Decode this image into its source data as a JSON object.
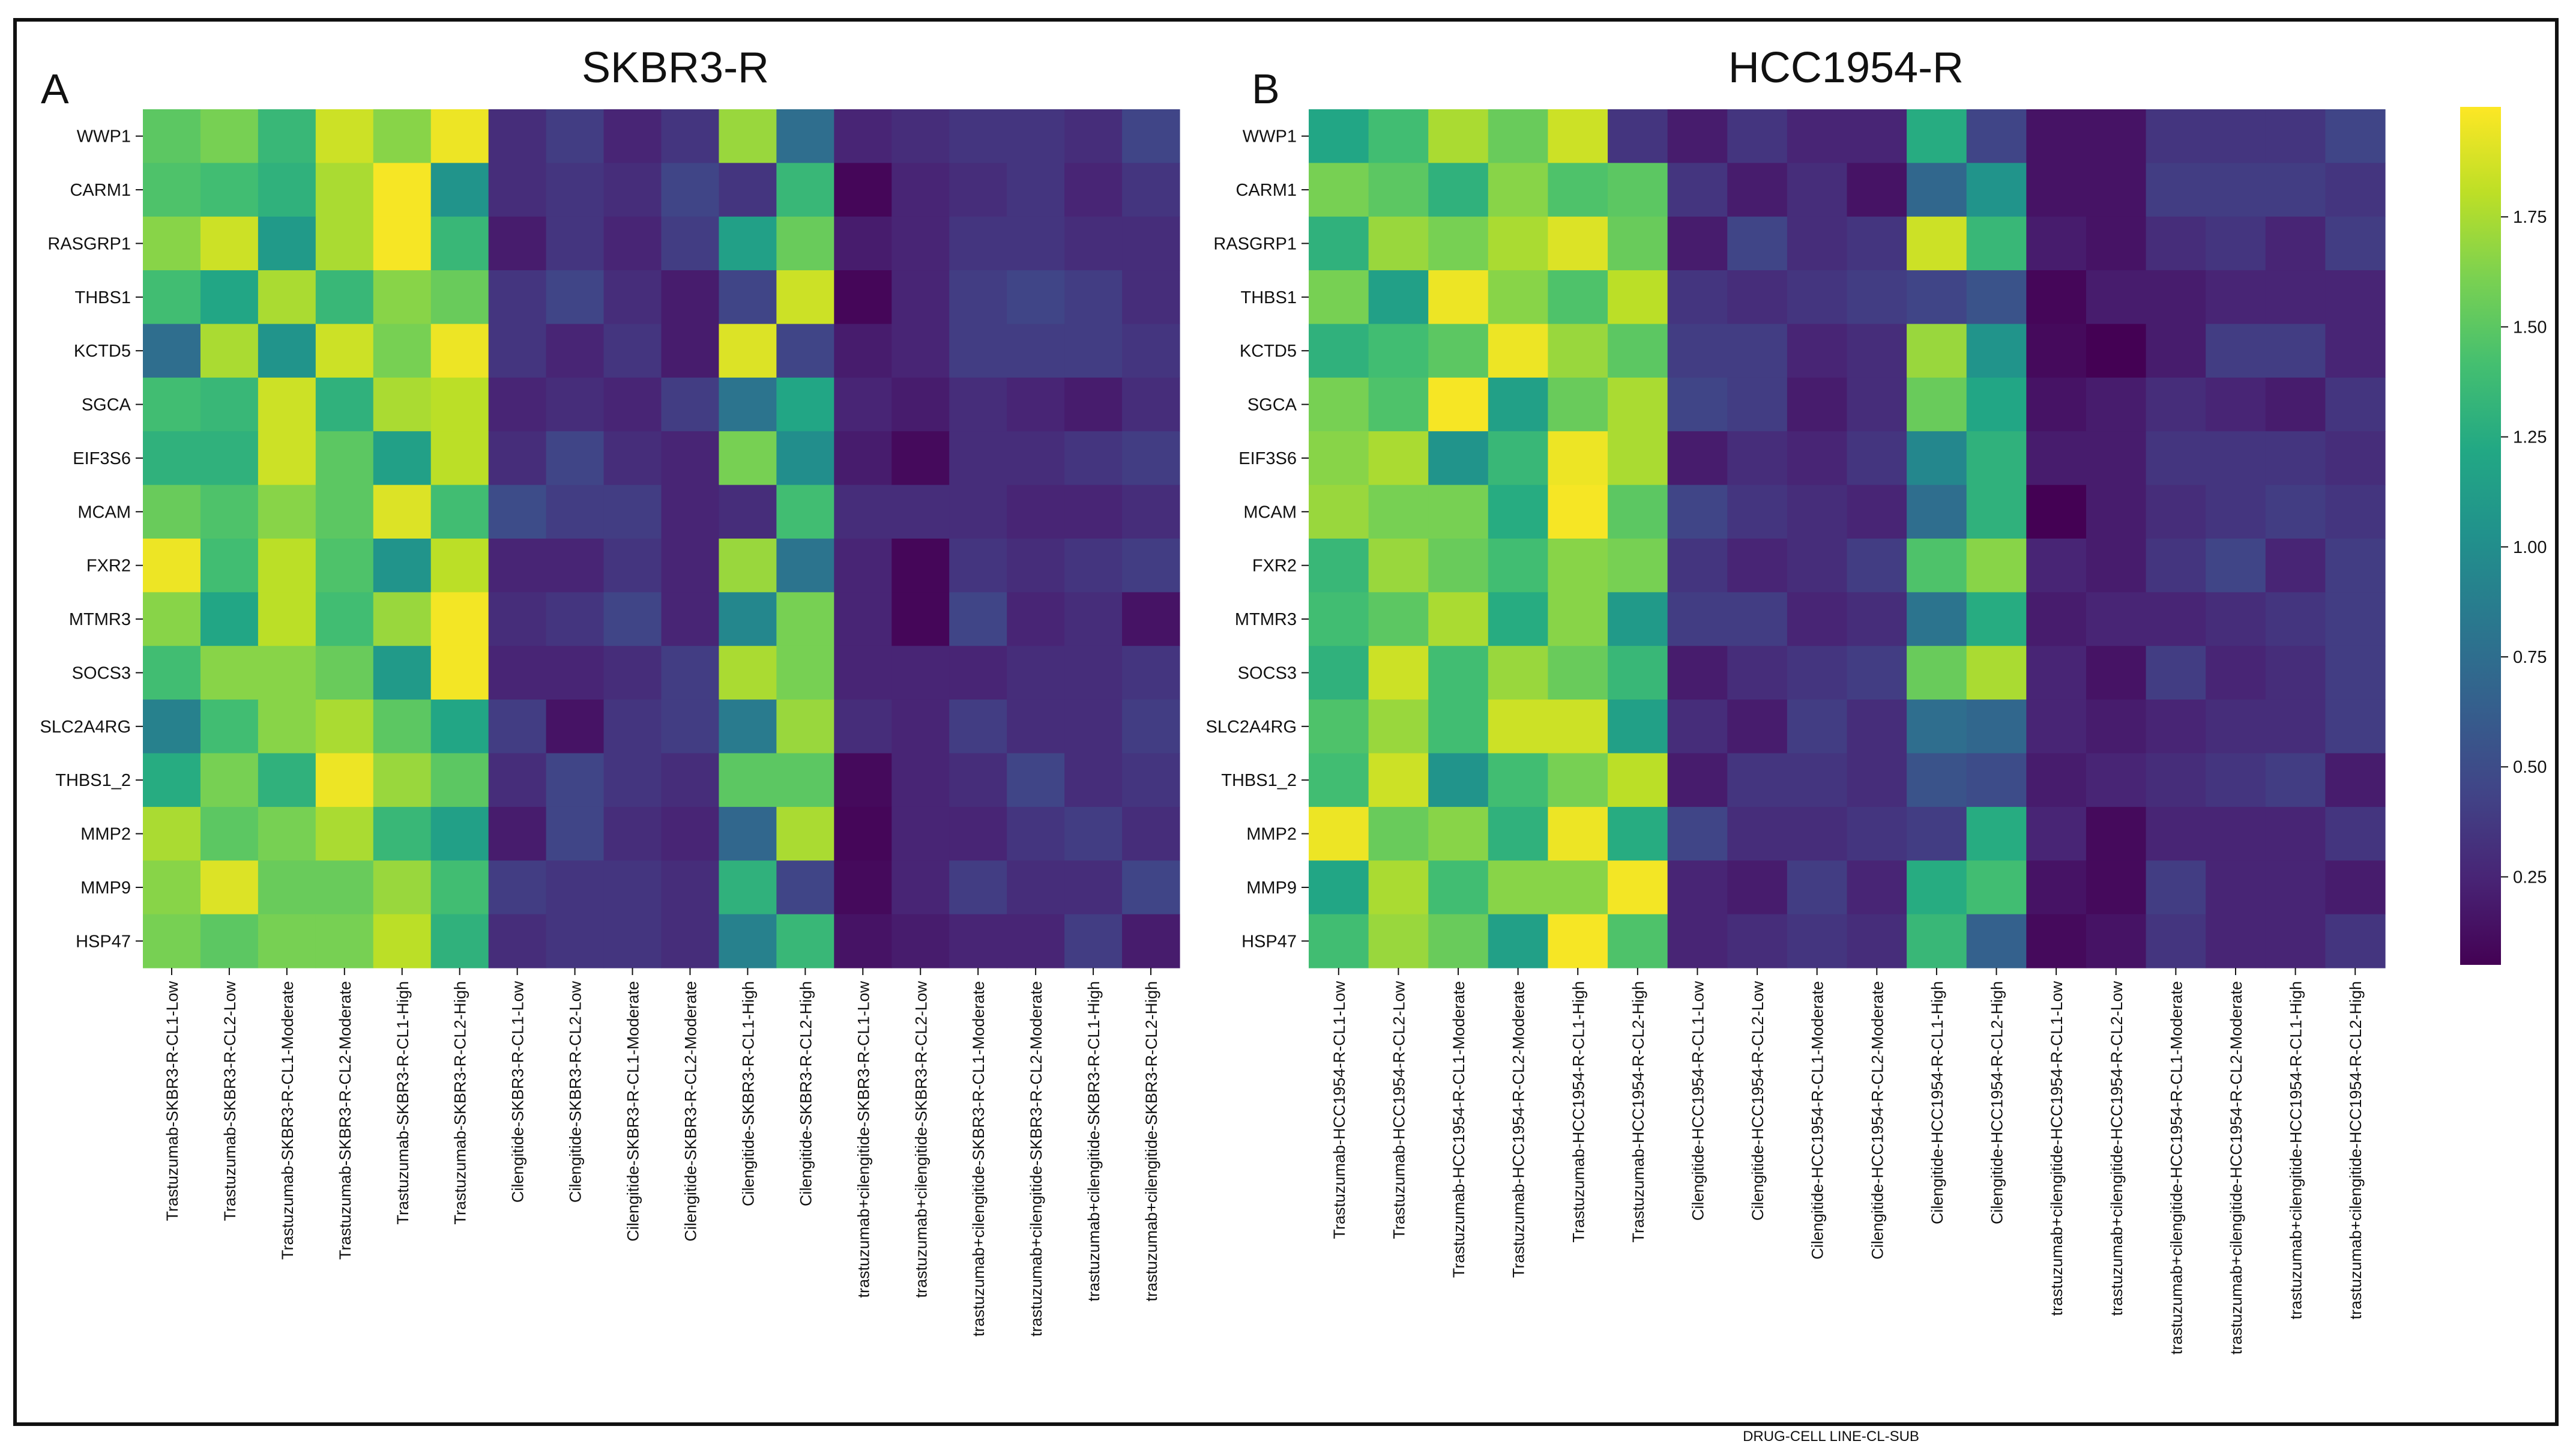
{
  "colorscale": "viridis",
  "chart_data": [
    {
      "type": "heatmap",
      "panel": "A",
      "title": "SKBR3-R",
      "rows": [
        "WWP1",
        "CARM1",
        "RASGRP1",
        "THBS1",
        "KCTD5",
        "SGCA",
        "EIF3S6",
        "MCAM",
        "FXR2",
        "MTMR3",
        "SOCS3",
        "SLC2A4RG",
        "THBS1_2",
        "MMP2",
        "MMP9",
        "HSP47"
      ],
      "columns": [
        "Trastuzumab-SKBR3-R-CL1-Low",
        "Trastuzumab-SKBR3-R-CL2-Low",
        "Trastuzumab-SKBR3-R-CL1-Moderate",
        "Trastuzumab-SKBR3-R-CL2-Moderate",
        "Trastuzumab-SKBR3-R-CL1-High",
        "Trastuzumab-SKBR3-R-CL2-High",
        "Cilengitide-SKBR3-R-CL1-Low",
        "Cilengitide-SKBR3-R-CL2-Low",
        "Cilengitide-SKBR3-R-CL1-Moderate",
        "Cilengitide-SKBR3-R-CL2-Moderate",
        "Cilengitide-SKBR3-R-CL1-High",
        "Cilengitide-SKBR3-R-CL2-High",
        "trastuzumab+cilengitide-SKBR3-R-CL1-Low",
        "trastuzumab+cilengitide-SKBR3-R-CL2-Low",
        "trastuzumab+cilengitide-SKBR3-R-CL1-Moderate",
        "trastuzumab+cilengitide-SKBR3-R-CL2-Moderate",
        "trastuzumab+cilengitide-SKBR3-R-CL1-High",
        "trastuzumab+cilengitide-SKBR3-R-CL2-High"
      ],
      "values": [
        [
          1.5,
          1.6,
          1.35,
          1.85,
          1.65,
          1.95,
          0.3,
          0.4,
          0.25,
          0.35,
          1.7,
          0.75,
          0.25,
          0.3,
          0.35,
          0.35,
          0.3,
          0.45
        ],
        [
          1.45,
          1.4,
          1.3,
          1.75,
          1.98,
          1.05,
          0.3,
          0.35,
          0.3,
          0.45,
          0.35,
          1.35,
          0.08,
          0.25,
          0.3,
          0.35,
          0.25,
          0.35
        ],
        [
          1.65,
          1.85,
          1.1,
          1.75,
          1.98,
          1.35,
          0.2,
          0.35,
          0.25,
          0.4,
          1.15,
          1.55,
          0.2,
          0.25,
          0.35,
          0.35,
          0.3,
          0.3
        ],
        [
          1.4,
          1.2,
          1.75,
          1.35,
          1.65,
          1.55,
          0.35,
          0.45,
          0.3,
          0.2,
          0.45,
          1.85,
          0.08,
          0.25,
          0.4,
          0.45,
          0.4,
          0.3
        ],
        [
          0.75,
          1.75,
          1.05,
          1.85,
          1.6,
          1.95,
          0.35,
          0.25,
          0.35,
          0.2,
          1.9,
          0.45,
          0.2,
          0.25,
          0.4,
          0.4,
          0.4,
          0.35
        ],
        [
          1.4,
          1.35,
          1.85,
          1.3,
          1.75,
          1.8,
          0.25,
          0.3,
          0.25,
          0.4,
          0.8,
          1.2,
          0.25,
          0.2,
          0.3,
          0.25,
          0.2,
          0.3
        ],
        [
          1.3,
          1.3,
          1.85,
          1.5,
          1.15,
          1.8,
          0.3,
          0.45,
          0.3,
          0.25,
          1.6,
          1.0,
          0.2,
          0.1,
          0.3,
          0.3,
          0.35,
          0.4
        ],
        [
          1.55,
          1.45,
          1.65,
          1.5,
          1.9,
          1.4,
          0.5,
          0.4,
          0.4,
          0.25,
          0.3,
          1.4,
          0.3,
          0.3,
          0.3,
          0.25,
          0.25,
          0.3
        ],
        [
          1.95,
          1.4,
          1.8,
          1.45,
          1.05,
          1.8,
          0.25,
          0.25,
          0.35,
          0.25,
          1.7,
          0.8,
          0.25,
          0.08,
          0.35,
          0.3,
          0.35,
          0.4
        ],
        [
          1.65,
          1.2,
          1.8,
          1.4,
          1.7,
          1.97,
          0.3,
          0.35,
          0.45,
          0.25,
          0.95,
          1.6,
          0.25,
          0.08,
          0.45,
          0.25,
          0.3,
          0.15
        ],
        [
          1.4,
          1.65,
          1.65,
          1.55,
          1.1,
          1.97,
          0.25,
          0.25,
          0.3,
          0.4,
          1.75,
          1.6,
          0.25,
          0.25,
          0.25,
          0.3,
          0.3,
          0.35
        ],
        [
          0.9,
          1.4,
          1.65,
          1.75,
          1.5,
          1.2,
          0.4,
          0.15,
          0.35,
          0.4,
          0.85,
          1.7,
          0.3,
          0.25,
          0.4,
          0.3,
          0.3,
          0.4
        ],
        [
          1.25,
          1.6,
          1.3,
          1.95,
          1.7,
          1.5,
          0.3,
          0.45,
          0.35,
          0.3,
          1.5,
          1.5,
          0.1,
          0.25,
          0.3,
          0.45,
          0.3,
          0.35
        ],
        [
          1.75,
          1.5,
          1.6,
          1.75,
          1.35,
          1.15,
          0.2,
          0.45,
          0.3,
          0.25,
          0.7,
          1.75,
          0.08,
          0.25,
          0.25,
          0.35,
          0.4,
          0.3
        ],
        [
          1.65,
          1.9,
          1.55,
          1.55,
          1.7,
          1.4,
          0.4,
          0.35,
          0.35,
          0.3,
          1.3,
          0.45,
          0.1,
          0.25,
          0.4,
          0.3,
          0.3,
          0.45
        ],
        [
          1.6,
          1.5,
          1.6,
          1.6,
          1.8,
          1.3,
          0.3,
          0.35,
          0.35,
          0.3,
          0.9,
          1.35,
          0.15,
          0.2,
          0.25,
          0.25,
          0.4,
          0.2
        ]
      ]
    },
    {
      "type": "heatmap",
      "panel": "B",
      "title": "HCC1954-R",
      "rows": [
        "WWP1",
        "CARM1",
        "RASGRP1",
        "THBS1",
        "KCTD5",
        "SGCA",
        "EIF3S6",
        "MCAM",
        "FXR2",
        "MTMR3",
        "SOCS3",
        "SLC2A4RG",
        "THBS1_2",
        "MMP2",
        "MMP9",
        "HSP47"
      ],
      "columns": [
        "Trastuzumab-HCC1954-R-CL1-Low",
        "Trastuzumab-HCC1954-R-CL2-Low",
        "Trastuzumab-HCC1954-R-CL1-Moderate",
        "Trastuzumab-HCC1954-R-CL2-Moderate",
        "Trastuzumab-HCC1954-R-CL1-High",
        "Trastuzumab-HCC1954-R-CL2-High",
        "Cilengitide-HCC1954-R-CL1-Low",
        "Cilengitide-HCC1954-R-CL2-Low",
        "Cilengitide-HCC1954-R-CL1-Moderate",
        "Cilengitide-HCC1954-R-CL2-Moderate",
        "Cilengitide-HCC1954-R-CL1-High",
        "Cilengitide-HCC1954-R-CL2-High",
        "trastuzumab+cilengitide-HCC1954-R-CL1-Low",
        "trastuzumab+cilengitide-HCC1954-R-CL2-Low",
        "trastuzumab+cilengitide-HCC1954-R-CL1-Moderate",
        "trastuzumab+cilengitide-HCC1954-R-CL2-Moderate",
        "trastuzumab+cilengitide-HCC1954-R-CL1-High",
        "trastuzumab+cilengitide-HCC1954-R-CL2-High"
      ],
      "values": [
        [
          1.2,
          1.4,
          1.75,
          1.55,
          1.85,
          0.35,
          0.2,
          0.35,
          0.25,
          0.25,
          1.25,
          0.45,
          0.15,
          0.15,
          0.35,
          0.35,
          0.35,
          0.45
        ],
        [
          1.6,
          1.5,
          1.3,
          1.65,
          1.45,
          1.5,
          0.35,
          0.2,
          0.3,
          0.15,
          0.7,
          1.05,
          0.15,
          0.15,
          0.4,
          0.4,
          0.4,
          0.35
        ],
        [
          1.3,
          1.7,
          1.6,
          1.75,
          1.9,
          1.55,
          0.2,
          0.45,
          0.3,
          0.35,
          1.85,
          1.35,
          0.2,
          0.15,
          0.3,
          0.35,
          0.25,
          0.4
        ],
        [
          1.6,
          1.15,
          1.95,
          1.65,
          1.45,
          1.8,
          0.35,
          0.3,
          0.35,
          0.4,
          0.45,
          0.55,
          0.08,
          0.2,
          0.2,
          0.25,
          0.25,
          0.25
        ],
        [
          1.3,
          1.4,
          1.5,
          1.95,
          1.7,
          1.5,
          0.4,
          0.4,
          0.25,
          0.3,
          1.7,
          1.05,
          0.1,
          0.05,
          0.2,
          0.4,
          0.4,
          0.25
        ],
        [
          1.6,
          1.45,
          1.98,
          1.15,
          1.55,
          1.75,
          0.45,
          0.4,
          0.2,
          0.3,
          1.55,
          1.2,
          0.15,
          0.2,
          0.3,
          0.25,
          0.2,
          0.35
        ],
        [
          1.65,
          1.75,
          1.05,
          1.35,
          1.95,
          1.75,
          0.2,
          0.3,
          0.25,
          0.35,
          0.95,
          1.3,
          0.2,
          0.2,
          0.35,
          0.35,
          0.35,
          0.3
        ],
        [
          1.7,
          1.6,
          1.6,
          1.25,
          1.98,
          1.5,
          0.45,
          0.35,
          0.3,
          0.25,
          0.75,
          1.3,
          0.05,
          0.2,
          0.3,
          0.35,
          0.4,
          0.35
        ],
        [
          1.35,
          1.7,
          1.55,
          1.4,
          1.65,
          1.6,
          0.35,
          0.25,
          0.3,
          0.4,
          1.45,
          1.65,
          0.25,
          0.2,
          0.35,
          0.45,
          0.25,
          0.4
        ],
        [
          1.4,
          1.5,
          1.75,
          1.25,
          1.65,
          1.1,
          0.4,
          0.4,
          0.25,
          0.3,
          0.8,
          1.25,
          0.2,
          0.25,
          0.25,
          0.3,
          0.35,
          0.4
        ],
        [
          1.3,
          1.85,
          1.4,
          1.7,
          1.55,
          1.35,
          0.2,
          0.3,
          0.35,
          0.4,
          1.55,
          1.75,
          0.25,
          0.15,
          0.4,
          0.25,
          0.3,
          0.4
        ],
        [
          1.45,
          1.7,
          1.4,
          1.85,
          1.85,
          1.15,
          0.3,
          0.2,
          0.4,
          0.3,
          0.75,
          0.7,
          0.25,
          0.2,
          0.25,
          0.3,
          0.3,
          0.4
        ],
        [
          1.4,
          1.85,
          1.05,
          1.4,
          1.6,
          1.8,
          0.2,
          0.35,
          0.35,
          0.3,
          0.55,
          0.5,
          0.2,
          0.25,
          0.3,
          0.35,
          0.4,
          0.2
        ],
        [
          1.95,
          1.55,
          1.65,
          1.3,
          1.95,
          1.25,
          0.45,
          0.3,
          0.3,
          0.35,
          0.4,
          1.25,
          0.25,
          0.1,
          0.25,
          0.25,
          0.25,
          0.35
        ],
        [
          1.2,
          1.75,
          1.4,
          1.65,
          1.65,
          1.97,
          0.25,
          0.2,
          0.4,
          0.25,
          1.25,
          1.4,
          0.15,
          0.1,
          0.4,
          0.25,
          0.25,
          0.2
        ],
        [
          1.4,
          1.7,
          1.55,
          1.15,
          1.98,
          1.45,
          0.25,
          0.3,
          0.35,
          0.3,
          1.35,
          0.65,
          0.1,
          0.15,
          0.35,
          0.25,
          0.25,
          0.35
        ]
      ]
    }
  ],
  "colorbar": {
    "min": 0.05,
    "max": 2.0,
    "ticks": [
      0.25,
      0.5,
      0.75,
      1.0,
      1.25,
      1.5,
      1.75
    ],
    "tick_labels": [
      "0.25",
      "0.50",
      "0.75",
      "1.00",
      "1.25",
      "1.50",
      "1.75"
    ]
  },
  "x_axis_label": "DRUG-CELL LINE-CL-SUB"
}
